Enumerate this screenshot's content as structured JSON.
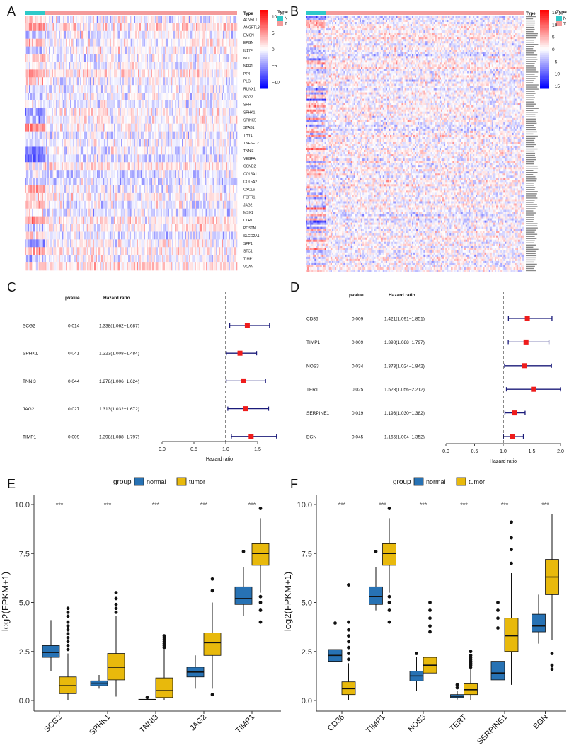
{
  "colors": {
    "normal_group": "#2772b4",
    "tumor_group": "#e8b90c",
    "type_N": "#2ec9c9",
    "type_T": "#f49a9a",
    "heat_high": "#ff0000",
    "heat_mid": "#ffffff",
    "heat_low": "#0000ff",
    "forest_point": "#ee1c1c",
    "forest_ci": "#1b1b7a"
  },
  "chart_data": [
    {
      "panel": "A",
      "type": "heatmap",
      "annotation_title": "Type",
      "legend": {
        "title": "Type",
        "entries": [
          "N",
          "T"
        ]
      },
      "colorbar": {
        "ticks": [
          "10",
          "5",
          "0",
          "−5",
          "−10"
        ],
        "range": [
          -12,
          12
        ]
      },
      "normal_fraction": 0.09,
      "rows": [
        "ACVRL1",
        "ANGPTL3",
        "EMCN",
        "EPGN",
        "IL17F",
        "NCL",
        "NPR1",
        "PF4",
        "PLG",
        "RUNX1",
        "SCG2",
        "SHH",
        "SPHK1",
        "SPINK5",
        "STAB1",
        "THY1",
        "TNFSF12",
        "TNNI3",
        "VEGFA",
        "CCND2",
        "COL3A1",
        "COL5A2",
        "CXCL6",
        "FGFR1",
        "JAG2",
        "MSX1",
        "OLR1",
        "POSTN",
        "SLCO2A1",
        "SPP1",
        "STC1",
        "TIMP1",
        "VCAN"
      ]
    },
    {
      "panel": "B",
      "type": "heatmap",
      "annotation_title": "Type",
      "legend": {
        "title": "Type",
        "entries": [
          "N",
          "T"
        ]
      },
      "colorbar": {
        "ticks": [
          "15",
          "10",
          "5",
          "0",
          "−5",
          "−10",
          "−15"
        ],
        "range": [
          -16,
          16
        ]
      },
      "normal_fraction": 0.09,
      "row_count_approx": 120
    },
    {
      "panel": "C",
      "type": "forest",
      "headers": {
        "pvalue": "pvalue",
        "hr": "Hazard ratio"
      },
      "xlabel": "Hazard ratio",
      "xticks": [
        "0.0",
        "0.5",
        "1.0",
        "1.5"
      ],
      "xlim": [
        0,
        1.8
      ],
      "ref_line": 1.0,
      "rows": [
        {
          "gene": "SCG2",
          "pvalue": "0.014",
          "hr_text": "1.338(1.062−1.687)",
          "hr": 1.338,
          "lo": 1.062,
          "hi": 1.687
        },
        {
          "gene": "SPHK1",
          "pvalue": "0.041",
          "hr_text": "1.223(1.008−1.484)",
          "hr": 1.223,
          "lo": 1.008,
          "hi": 1.484
        },
        {
          "gene": "TNNI3",
          "pvalue": "0.044",
          "hr_text": "1.278(1.006−1.624)",
          "hr": 1.278,
          "lo": 1.006,
          "hi": 1.624
        },
        {
          "gene": "JAG2",
          "pvalue": "0.027",
          "hr_text": "1.313(1.032−1.672)",
          "hr": 1.313,
          "lo": 1.032,
          "hi": 1.672
        },
        {
          "gene": "TIMP1",
          "pvalue": "0.009",
          "hr_text": "1.398(1.088−1.797)",
          "hr": 1.398,
          "lo": 1.088,
          "hi": 1.797
        }
      ]
    },
    {
      "panel": "D",
      "type": "forest",
      "headers": {
        "pvalue": "pvalue",
        "hr": "Hazard ratio"
      },
      "xlabel": "Hazard ratio",
      "xticks": [
        "0.0",
        "0.5",
        "1.0",
        "1.5",
        "2.0"
      ],
      "xlim": [
        0,
        2.0
      ],
      "ref_line": 1.0,
      "rows": [
        {
          "gene": "CD36",
          "pvalue": "0.009",
          "hr_text": "1.421(1.091−1.851)",
          "hr": 1.421,
          "lo": 1.091,
          "hi": 1.851
        },
        {
          "gene": "TIMP1",
          "pvalue": "0.009",
          "hr_text": "1.398(1.088−1.797)",
          "hr": 1.398,
          "lo": 1.088,
          "hi": 1.797
        },
        {
          "gene": "NOS3",
          "pvalue": "0.034",
          "hr_text": "1.373(1.024−1.842)",
          "hr": 1.373,
          "lo": 1.024,
          "hi": 1.842
        },
        {
          "gene": "TERT",
          "pvalue": "0.025",
          "hr_text": "1.528(1.056−2.212)",
          "hr": 1.528,
          "lo": 1.056,
          "hi": 2.212
        },
        {
          "gene": "SERPINE1",
          "pvalue": "0.019",
          "hr_text": "1.193(1.030−1.382)",
          "hr": 1.193,
          "lo": 1.03,
          "hi": 1.382
        },
        {
          "gene": "BGN",
          "pvalue": "0.045",
          "hr_text": "1.165(1.004−1.352)",
          "hr": 1.165,
          "lo": 1.004,
          "hi": 1.352
        }
      ]
    },
    {
      "panel": "E",
      "type": "box",
      "legend": {
        "title": "group",
        "entries": [
          "normal",
          "tumor"
        ],
        "placement": "top"
      },
      "ylabel": "log2(FPKM+1)",
      "ylim": [
        0,
        10
      ],
      "yticks": [
        "0.0",
        "2.5",
        "5.0",
        "7.5",
        "10.0"
      ],
      "significance": "***",
      "categories": [
        "SCG2",
        "SPHK1",
        "TNNI3",
        "JAG2",
        "TIMP1"
      ],
      "series": [
        {
          "name": "normal",
          "boxes": [
            {
              "min": 1.5,
              "q1": 2.2,
              "med": 2.45,
              "q3": 2.8,
              "max": 4.1,
              "out": []
            },
            {
              "min": 0.6,
              "q1": 0.75,
              "med": 0.88,
              "q3": 1.0,
              "max": 1.3,
              "out": []
            },
            {
              "min": 0.0,
              "q1": 0.02,
              "med": 0.04,
              "q3": 0.06,
              "max": 0.1,
              "out": [
                0.15
              ]
            },
            {
              "min": 0.6,
              "q1": 1.2,
              "med": 1.45,
              "q3": 1.7,
              "max": 2.3,
              "out": []
            },
            {
              "min": 4.3,
              "q1": 4.9,
              "med": 5.2,
              "q3": 5.8,
              "max": 6.8,
              "out": [
                7.6
              ]
            }
          ]
        },
        {
          "name": "tumor",
          "boxes": [
            {
              "min": 0.0,
              "q1": 0.35,
              "med": 0.75,
              "q3": 1.2,
              "max": 2.4,
              "out": [
                2.6,
                2.8,
                3.0,
                3.2,
                3.4,
                3.6,
                3.8,
                4.0,
                4.3,
                4.5,
                4.7
              ]
            },
            {
              "min": 0.2,
              "q1": 1.05,
              "med": 1.7,
              "q3": 2.4,
              "max": 4.3,
              "out": [
                4.5,
                4.7,
                4.9,
                5.2,
                5.5
              ]
            },
            {
              "min": 0.0,
              "q1": 0.15,
              "med": 0.5,
              "q3": 1.15,
              "max": 2.6,
              "out": [
                2.7,
                2.8,
                2.9,
                3.0,
                3.1,
                3.2,
                3.3
              ]
            },
            {
              "min": 0.6,
              "q1": 2.3,
              "med": 2.95,
              "q3": 3.45,
              "max": 5.0,
              "out": [
                0.3,
                5.6,
                6.2
              ]
            },
            {
              "min": 5.5,
              "q1": 6.9,
              "med": 7.5,
              "q3": 8.0,
              "max": 9.3,
              "out": [
                4.0,
                4.6,
                5.0,
                5.3,
                9.8
              ]
            }
          ]
        }
      ]
    },
    {
      "panel": "F",
      "type": "box",
      "legend": {
        "title": "group",
        "entries": [
          "normal",
          "tumor"
        ],
        "placement": "top"
      },
      "ylabel": "log2(FPKM+1)",
      "ylim": [
        0,
        10
      ],
      "yticks": [
        "0.0",
        "2.5",
        "5.0",
        "7.5",
        "10.0"
      ],
      "significance": "***",
      "categories": [
        "CD36",
        "TIMP1",
        "NOS3",
        "TERT",
        "SERPINE1",
        "BGN"
      ],
      "series": [
        {
          "name": "normal",
          "boxes": [
            {
              "min": 1.4,
              "q1": 2.0,
              "med": 2.3,
              "q3": 2.6,
              "max": 3.3,
              "out": [
                3.95
              ]
            },
            {
              "min": 4.6,
              "q1": 4.9,
              "med": 5.3,
              "q3": 5.8,
              "max": 6.8,
              "out": [
                7.6
              ]
            },
            {
              "min": 0.5,
              "q1": 1.0,
              "med": 1.25,
              "q3": 1.5,
              "max": 2.2,
              "out": [
                2.4
              ]
            },
            {
              "min": 0.05,
              "q1": 0.15,
              "med": 0.22,
              "q3": 0.3,
              "max": 0.5,
              "out": [
                0.65,
                0.8
              ]
            },
            {
              "min": 0.4,
              "q1": 1.05,
              "med": 1.4,
              "q3": 2.0,
              "max": 3.3,
              "out": [
                3.7,
                4.2,
                4.6,
                5.0
              ]
            },
            {
              "min": 2.9,
              "q1": 3.5,
              "med": 3.8,
              "q3": 4.4,
              "max": 5.4,
              "out": []
            }
          ]
        },
        {
          "name": "tumor",
          "boxes": [
            {
              "min": 0.0,
              "q1": 0.3,
              "med": 0.6,
              "q3": 0.95,
              "max": 1.9,
              "out": [
                2.1,
                2.4,
                2.7,
                3.0,
                3.3,
                3.6,
                4.0,
                5.9
              ]
            },
            {
              "min": 5.5,
              "q1": 6.9,
              "med": 7.5,
              "q3": 8.0,
              "max": 9.3,
              "out": [
                4.0,
                4.6,
                5.0,
                5.3,
                9.8
              ]
            },
            {
              "min": 0.1,
              "q1": 1.4,
              "med": 1.8,
              "q3": 2.2,
              "max": 3.3,
              "out": [
                3.5,
                3.8,
                4.2,
                4.6,
                5.0
              ]
            },
            {
              "min": 0.0,
              "q1": 0.3,
              "med": 0.55,
              "q3": 0.85,
              "max": 1.6,
              "out": [
                1.7,
                1.8,
                1.9,
                2.0,
                2.1,
                2.2,
                2.3,
                2.5
              ]
            },
            {
              "min": 0.8,
              "q1": 2.5,
              "med": 3.3,
              "q3": 4.2,
              "max": 6.5,
              "out": [
                7.0,
                7.7,
                8.3,
                9.1
              ]
            },
            {
              "min": 3.1,
              "q1": 5.4,
              "med": 6.3,
              "q3": 7.2,
              "max": 9.5,
              "out": [
                1.6,
                1.8,
                2.4
              ]
            }
          ]
        }
      ]
    }
  ],
  "panel_labels": [
    "A",
    "B",
    "C",
    "D",
    "E",
    "F"
  ]
}
